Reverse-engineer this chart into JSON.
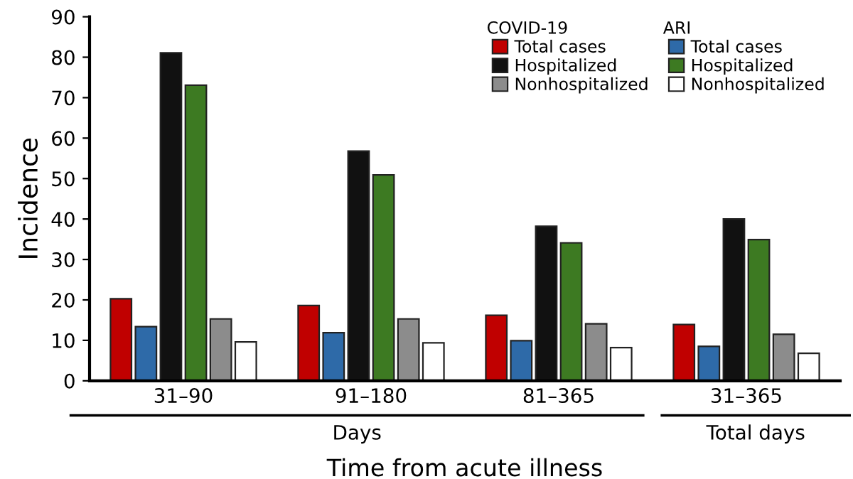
{
  "chart_data": {
    "type": "bar",
    "xlabel": "Time from acute illness",
    "ylabel": "Incidence",
    "categories": [
      "31–90",
      "91–180",
      "81–365",
      "31–365"
    ],
    "series": [
      {
        "name": "Total cases",
        "color": "#c00000",
        "values": [
          20.3,
          18.6,
          16.2,
          13.9
        ]
      },
      {
        "name": "Total cases",
        "color": "#2e6aa8",
        "values": [
          13.4,
          11.9,
          9.9,
          8.5
        ]
      },
      {
        "name": "Hospitalized",
        "color": "#111111",
        "values": [
          81.1,
          56.8,
          38.2,
          40.0
        ]
      },
      {
        "name": "Hospitalized",
        "color": "#3d7a22",
        "values": [
          73.1,
          50.9,
          34.1,
          34.9
        ]
      },
      {
        "name": "Nonhospitalized",
        "color": "#8c8c8c",
        "values": [
          15.3,
          15.3,
          14.1,
          11.5
        ]
      },
      {
        "name": "Nonhospitalized",
        "color": "#ffffff",
        "values": [
          9.6,
          9.4,
          8.2,
          6.8
        ]
      }
    ],
    "ylim": [
      0,
      90
    ],
    "yticks": [
      0,
      10,
      20,
      30,
      40,
      50,
      60,
      70,
      80,
      90
    ],
    "grid": false,
    "legend": "top right",
    "annotations": [
      "COVID-19",
      "ARI",
      "Days",
      "Total days"
    ]
  }
}
